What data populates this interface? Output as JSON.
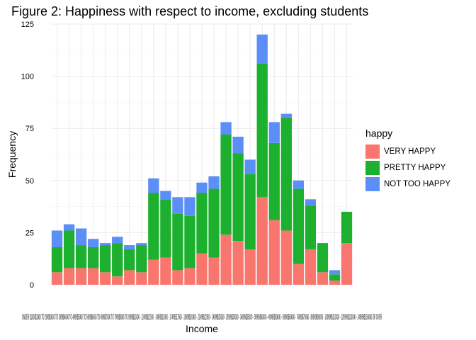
{
  "title": "Figure 2: Happiness with respect to income, excluding students",
  "chart_data": {
    "type": "bar",
    "stacked": true,
    "xlabel": "Income",
    "ylabel": "Frequency",
    "ylim": [
      0,
      125
    ],
    "yticks": [
      0,
      25,
      50,
      75,
      100,
      125
    ],
    "grid": true,
    "legend_title": "happy",
    "legend_position": "right",
    "x_tick_text": "UNDER $1000$1000 TO 2999$3000 TO 3999$4000 TO 4999$5000 TO 5999$6000 TO 6999$7000 TO 7999$8000 TO 9999$10000 - 12499$12500 - 14999$15000 - 17499$17500 - 19999$20000 - 22499$22500 - 24999$25000 - 29999$30000 - 34999$35000 - 39999$40000 - 49999$50000 - 59999$60000 - 74999$75000 - 89999$90000 - 109999$110000 - 129999$130000 - 149999$150000 OR OVER",
    "categories": [
      "1",
      "2",
      "3",
      "4",
      "5",
      "6",
      "7",
      "8",
      "9",
      "10",
      "11",
      "12",
      "13",
      "14",
      "15",
      "16",
      "17",
      "18",
      "19",
      "20",
      "21",
      "22",
      "23",
      "24",
      "25"
    ],
    "series": [
      {
        "name": "VERY HAPPY",
        "color": "#F8766D",
        "values": [
          6,
          8,
          8,
          8,
          6,
          4,
          7,
          6,
          12,
          13,
          7,
          8,
          15,
          13,
          24,
          21,
          17,
          42,
          31,
          26,
          10,
          17,
          6,
          2,
          20
        ]
      },
      {
        "name": "PRETTY HAPPY",
        "color": "#1DAF2E",
        "values": [
          12,
          18,
          11,
          10,
          13,
          16,
          10,
          13,
          32,
          28,
          27,
          25,
          29,
          33,
          48,
          42,
          36,
          64,
          37,
          54,
          36,
          21,
          14,
          3,
          15
        ]
      },
      {
        "name": "NOT TOO HAPPY",
        "color": "#5B8FF7",
        "values": [
          8,
          3,
          8,
          4,
          1,
          3,
          2,
          1,
          7,
          4,
          8,
          9,
          5,
          6,
          6,
          8,
          7,
          14,
          10,
          2,
          4,
          3,
          0,
          2,
          0
        ]
      }
    ]
  }
}
